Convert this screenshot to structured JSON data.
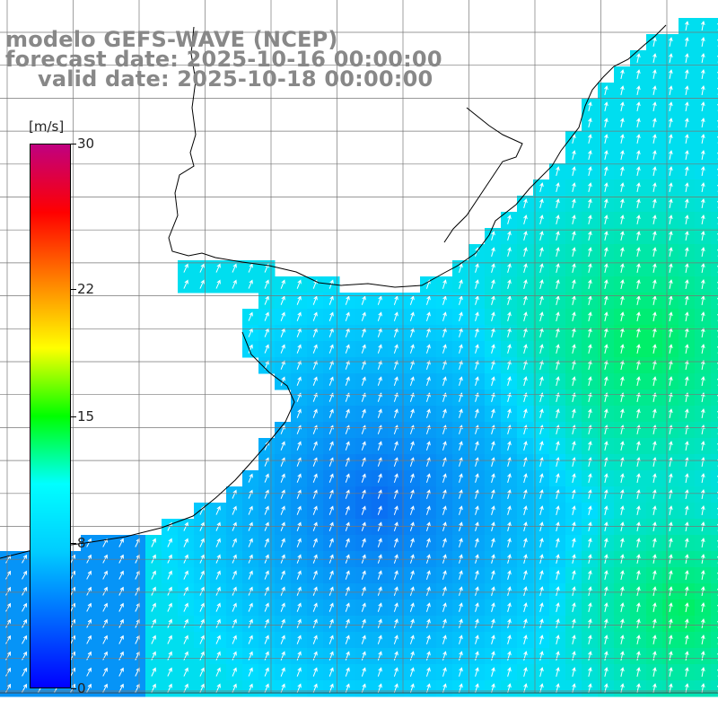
{
  "map": {
    "title_lines": [
      "modelo GEFS-WAVE (NCEP)",
      "forecast date: 2025-10-16 00:00:00",
      "valid date: 2025-10-18 00:00:00"
    ],
    "colorbar": {
      "unit": "[m/s]",
      "labels": [
        "30",
        "22",
        "15",
        "8",
        "0"
      ],
      "values": [
        30,
        22,
        15,
        8,
        0
      ],
      "colors": [
        "#0000ff",
        "#0066ff",
        "#00ccff",
        "#00ffff",
        "#00ff00",
        "#ffff00",
        "#ff8000",
        "#ff0000",
        "#c00080"
      ]
    },
    "ocean_colors": {
      "low": "#0a6cf2",
      "mid": "#00dcff",
      "high": "#00f060",
      "land": "#ffffff",
      "grid": "#777777",
      "coast": "#000000",
      "arrow": "#ffffff"
    }
  }
}
